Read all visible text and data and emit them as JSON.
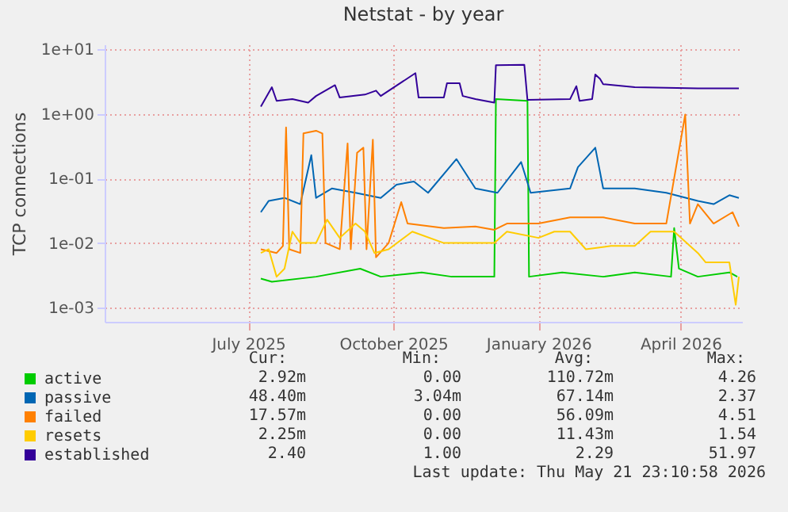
{
  "chart_data": {
    "type": "line",
    "title": "Netstat - by year",
    "ylabel": "TCP connections",
    "log": "y",
    "grid": true,
    "legend": "bottom left",
    "line_style": "solid",
    "xlim": [
      "2025-04-01",
      "2026-05-10"
    ],
    "xticks": [
      {
        "value": "2025-07-01",
        "label": "July 2025"
      },
      {
        "value": "2025-10-01",
        "label": "October 2025"
      },
      {
        "value": "2026-01-01",
        "label": "January 2026"
      },
      {
        "value": "2026-04-01",
        "label": "April 2026"
      }
    ],
    "ylim": [
      0.0006,
      12
    ],
    "yticks": [
      {
        "value": 0.001,
        "label": "1e-03"
      },
      {
        "value": 0.01,
        "label": "1e-02"
      },
      {
        "value": 0.1,
        "label": "1e-01"
      },
      {
        "value": 1,
        "label": "1e+00"
      },
      {
        "value": 10,
        "label": "1e+01"
      }
    ],
    "series": [
      {
        "name": "active",
        "color": "#00cc00",
        "x": [
          "2025-07-09",
          "2025-07-16",
          "2025-08-13",
          "2025-09-10",
          "2025-09-23",
          "2025-10-19",
          "2025-11-07",
          "2025-12-04",
          "2025-12-05",
          "2025-12-25",
          "2025-12-26",
          "2026-01-16",
          "2026-02-11",
          "2026-03-03",
          "2026-03-26",
          "2026-03-28",
          "2026-03-31",
          "2026-04-12",
          "2026-05-02",
          "2026-05-07"
        ],
        "values": [
          0.0028,
          0.0025,
          0.003,
          0.004,
          0.003,
          0.0035,
          0.003,
          0.003,
          1.7,
          1.6,
          0.003,
          0.0035,
          0.003,
          0.0035,
          0.003,
          0.017,
          0.004,
          0.003,
          0.0035,
          0.003
        ]
      },
      {
        "name": "passive",
        "color": "#0066b3",
        "x": [
          "2025-07-09",
          "2025-07-14",
          "2025-07-24",
          "2025-08-03",
          "2025-08-10",
          "2025-08-13",
          "2025-08-23",
          "2025-09-07",
          "2025-09-23",
          "2025-10-03",
          "2025-10-14",
          "2025-10-23",
          "2025-11-10",
          "2025-11-22",
          "2025-12-06",
          "2025-12-21",
          "2025-12-27",
          "2026-01-21",
          "2026-01-26",
          "2026-02-06",
          "2026-02-11",
          "2026-03-03",
          "2026-03-23",
          "2026-04-12",
          "2026-04-22",
          "2026-05-02",
          "2026-05-08"
        ],
        "values": [
          0.03,
          0.045,
          0.05,
          0.04,
          0.23,
          0.05,
          0.07,
          0.06,
          0.05,
          0.08,
          0.09,
          0.06,
          0.2,
          0.07,
          0.06,
          0.18,
          0.06,
          0.07,
          0.15,
          0.3,
          0.07,
          0.07,
          0.06,
          0.045,
          0.04,
          0.055,
          0.05
        ]
      },
      {
        "name": "failed",
        "color": "#ff8000",
        "x": [
          "2025-07-09",
          "2025-07-19",
          "2025-07-23",
          "2025-07-25",
          "2025-07-27",
          "2025-08-03",
          "2025-08-05",
          "2025-08-13",
          "2025-08-17",
          "2025-08-19",
          "2025-08-28",
          "2025-09-02",
          "2025-09-04",
          "2025-09-08",
          "2025-09-12",
          "2025-09-14",
          "2025-09-18",
          "2025-09-20",
          "2025-09-28",
          "2025-10-06",
          "2025-10-10",
          "2025-11-02",
          "2025-11-22",
          "2025-12-04",
          "2025-12-12",
          "2025-12-22",
          "2026-01-01",
          "2026-01-21",
          "2026-02-11",
          "2026-03-03",
          "2026-03-13",
          "2026-03-23",
          "2026-04-04",
          "2026-04-07",
          "2026-04-12",
          "2026-04-22",
          "2026-05-04",
          "2026-05-08"
        ],
        "values": [
          0.008,
          0.007,
          0.009,
          0.62,
          0.008,
          0.007,
          0.5,
          0.55,
          0.5,
          0.01,
          0.008,
          0.35,
          0.008,
          0.25,
          0.3,
          0.008,
          0.4,
          0.006,
          0.01,
          0.043,
          0.02,
          0.017,
          0.018,
          0.016,
          0.02,
          0.02,
          0.02,
          0.025,
          0.025,
          0.02,
          0.02,
          0.02,
          0.98,
          0.02,
          0.04,
          0.02,
          0.03,
          0.018
        ]
      },
      {
        "name": "resets",
        "color": "#ffcc00",
        "x": [
          "2025-07-09",
          "2025-07-14",
          "2025-07-19",
          "2025-07-24",
          "2025-07-29",
          "2025-08-03",
          "2025-08-13",
          "2025-08-20",
          "2025-08-28",
          "2025-09-07",
          "2025-09-13",
          "2025-09-19",
          "2025-09-28",
          "2025-10-13",
          "2025-11-02",
          "2025-11-22",
          "2025-12-04",
          "2025-12-12",
          "2026-01-01",
          "2026-01-11",
          "2026-01-21",
          "2026-01-31",
          "2026-02-16",
          "2026-03-03",
          "2026-03-13",
          "2026-03-28",
          "2026-04-12",
          "2026-04-17",
          "2026-05-02",
          "2026-05-06",
          "2026-05-08"
        ],
        "values": [
          0.007,
          0.008,
          0.003,
          0.004,
          0.015,
          0.01,
          0.01,
          0.023,
          0.012,
          0.02,
          0.015,
          0.007,
          0.008,
          0.015,
          0.01,
          0.01,
          0.01,
          0.015,
          0.012,
          0.015,
          0.015,
          0.008,
          0.009,
          0.009,
          0.015,
          0.015,
          0.007,
          0.005,
          0.005,
          0.0011,
          0.003
        ]
      },
      {
        "name": "established",
        "color": "#330099",
        "x": [
          "2025-07-09",
          "2025-07-16",
          "2025-07-19",
          "2025-07-29",
          "2025-08-08",
          "2025-08-13",
          "2025-08-25",
          "2025-08-28",
          "2025-09-13",
          "2025-09-20",
          "2025-09-23",
          "2025-10-15",
          "2025-10-17",
          "2025-11-02",
          "2025-11-04",
          "2025-11-12",
          "2025-11-14",
          "2025-11-22",
          "2025-12-04",
          "2025-12-05",
          "2025-12-23",
          "2025-12-25",
          "2026-01-21",
          "2026-01-25",
          "2026-01-27",
          "2026-02-04",
          "2026-02-06",
          "2026-02-09",
          "2026-02-11",
          "2026-03-03",
          "2026-04-12",
          "2026-05-08"
        ],
        "values": [
          1.3,
          2.6,
          1.6,
          1.7,
          1.5,
          1.9,
          2.8,
          1.8,
          2.0,
          2.3,
          1.9,
          4.3,
          1.8,
          1.8,
          3.0,
          3.0,
          1.9,
          1.7,
          1.5,
          5.7,
          5.8,
          1.66,
          1.7,
          2.7,
          1.6,
          1.7,
          4.1,
          3.5,
          2.9,
          2.6,
          2.5,
          2.5
        ]
      }
    ],
    "annotations": [
      "Cur:",
      "Min:",
      "Avg:",
      "Max:",
      "2.92m",
      "0.00",
      "110.72m",
      "4.26",
      "48.40m",
      "3.04m",
      "67.14m",
      "2.37",
      "17.57m",
      "0.00",
      "56.09m",
      "4.51",
      "2.25m",
      "0.00",
      "11.43m",
      "1.54",
      "2.40",
      "1.00",
      "2.29",
      "51.97",
      "Last update: Thu May 21 23:10:58 2026"
    ]
  }
}
